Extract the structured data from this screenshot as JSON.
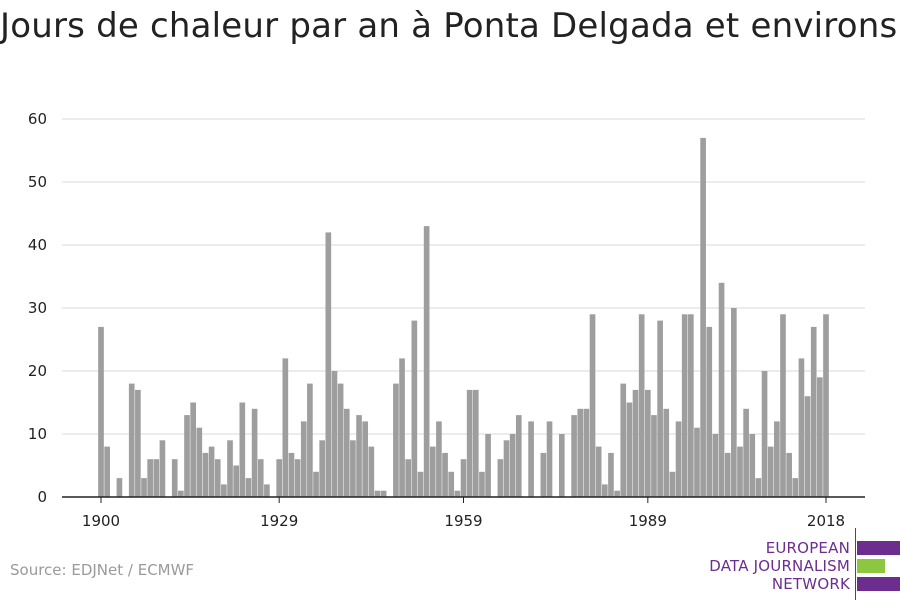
{
  "header": {
    "title": "Jours de chaleur par an à Ponta Delgada et environs"
  },
  "footer": {
    "source": "Source: EDJNet / ECMWF"
  },
  "logo": {
    "line1": "EUROPEAN",
    "line2": "DATA JOURNALISM",
    "line3": "NETWORK",
    "color_primary": "#6c2d8f",
    "color_accent": "#8dc63f"
  },
  "colors": {
    "bar": "#9e9e9e",
    "grid": "#d9d9d9",
    "axis": "#222222"
  },
  "chart_data": {
    "type": "bar",
    "title": "Jours de chaleur par an à Ponta Delgada et environs",
    "xlabel": "",
    "ylabel": "",
    "ylim": [
      0,
      60
    ],
    "yticks": [
      0,
      10,
      20,
      30,
      40,
      50,
      60
    ],
    "xticks": [
      1900,
      1929,
      1959,
      1989,
      2018
    ],
    "grid": true,
    "x": [
      1900,
      1901,
      1902,
      1903,
      1904,
      1905,
      1906,
      1907,
      1908,
      1909,
      1910,
      1911,
      1912,
      1913,
      1914,
      1915,
      1916,
      1917,
      1918,
      1919,
      1920,
      1921,
      1922,
      1923,
      1924,
      1925,
      1926,
      1927,
      1928,
      1929,
      1930,
      1931,
      1932,
      1933,
      1934,
      1935,
      1936,
      1937,
      1938,
      1939,
      1940,
      1941,
      1942,
      1943,
      1944,
      1945,
      1946,
      1947,
      1948,
      1949,
      1950,
      1951,
      1952,
      1953,
      1954,
      1955,
      1956,
      1957,
      1958,
      1959,
      1960,
      1961,
      1962,
      1963,
      1964,
      1965,
      1966,
      1967,
      1968,
      1969,
      1970,
      1971,
      1972,
      1973,
      1974,
      1975,
      1976,
      1977,
      1978,
      1979,
      1980,
      1981,
      1982,
      1983,
      1984,
      1985,
      1986,
      1987,
      1988,
      1989,
      1990,
      1991,
      1992,
      1993,
      1994,
      1995,
      1996,
      1997,
      1998,
      1999,
      2000,
      2001,
      2002,
      2003,
      2004,
      2005,
      2006,
      2007,
      2008,
      2009,
      2010,
      2011,
      2012,
      2013,
      2014,
      2015,
      2016,
      2017,
      2018
    ],
    "values": [
      27,
      8,
      0,
      3,
      0,
      18,
      17,
      3,
      6,
      6,
      9,
      0,
      6,
      1,
      13,
      15,
      11,
      7,
      8,
      6,
      2,
      9,
      5,
      15,
      3,
      14,
      6,
      2,
      0,
      6,
      22,
      7,
      6,
      12,
      18,
      4,
      9,
      42,
      20,
      18,
      14,
      9,
      13,
      12,
      8,
      1,
      1,
      0,
      18,
      22,
      6,
      28,
      4,
      43,
      8,
      12,
      7,
      4,
      1,
      6,
      17,
      17,
      4,
      10,
      0,
      6,
      9,
      10,
      13,
      0,
      12,
      0,
      7,
      12,
      0,
      10,
      0,
      13,
      14,
      14,
      29,
      8,
      2,
      7,
      1,
      18,
      15,
      17,
      29,
      17,
      13,
      28,
      14,
      4,
      12,
      29,
      29,
      11,
      57,
      27,
      10,
      34,
      7,
      30,
      8,
      14,
      10,
      3,
      20,
      8,
      12,
      29,
      7,
      3,
      22,
      16,
      27,
      19,
      29
    ]
  }
}
